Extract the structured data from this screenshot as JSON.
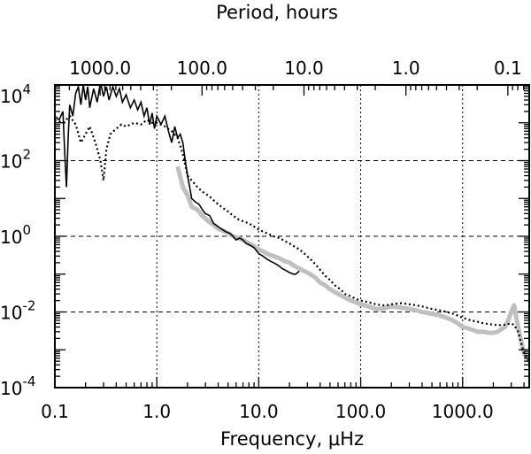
{
  "chart_data": {
    "type": "line",
    "top_axis_title": "Period, hours",
    "bottom_axis_title": "Frequency, μHz",
    "top_tick_labels": [
      "1000.0",
      "100.0",
      "10.0",
      "1.0",
      "0.1"
    ],
    "top_tick_values_hours": [
      1000,
      100,
      10,
      1,
      0.1
    ],
    "bottom_tick_labels": [
      "0.1",
      "1.0",
      "10.0",
      "100.0",
      "1000.0"
    ],
    "bottom_tick_values": [
      0.1,
      1,
      10,
      100,
      1000
    ],
    "y_tick_labels": [
      {
        "base": "10",
        "exp": "4",
        "value": 10000
      },
      {
        "base": "10",
        "exp": "2",
        "value": 100
      },
      {
        "base": "10",
        "exp": "0",
        "value": 1
      },
      {
        "base": "10",
        "exp": "-2",
        "value": 0.01
      },
      {
        "base": "10",
        "exp": "-4",
        "value": 0.0001
      }
    ],
    "x_scale": "log",
    "y_scale": "log",
    "xlim": [
      0.1,
      4500
    ],
    "ylim": [
      0.0001,
      10000
    ],
    "grid": "dotted",
    "series": [
      {
        "style": "solid-gray",
        "color": "#c0c0c0",
        "x": [
          1.6,
          1.8,
          2.0,
          2.2,
          2.5,
          2.8,
          3.2,
          3.6,
          4.0,
          4.5,
          5.0,
          5.6,
          6.3,
          7.0,
          8.0,
          9.0,
          10,
          11,
          12.5,
          14,
          16,
          18,
          20,
          22,
          25,
          28,
          32,
          36,
          40,
          45,
          50,
          56,
          63,
          70,
          80,
          90,
          100,
          120,
          140,
          160,
          180,
          200,
          250,
          300,
          350,
          400,
          500,
          600,
          700,
          800,
          900,
          1000,
          1200,
          1400,
          1600,
          1800,
          2000,
          2200,
          2400,
          2600,
          2800,
          3000,
          3200,
          3400,
          3700,
          4000,
          4300,
          4500
        ],
        "y": [
          70,
          20,
          12,
          6,
          5,
          3.5,
          2.5,
          2.0,
          1.6,
          1.4,
          1.2,
          1.0,
          0.9,
          0.8,
          0.65,
          0.55,
          0.45,
          0.4,
          0.33,
          0.3,
          0.26,
          0.22,
          0.2,
          0.17,
          0.14,
          0.12,
          0.1,
          0.08,
          0.06,
          0.05,
          0.04,
          0.033,
          0.028,
          0.024,
          0.02,
          0.018,
          0.016,
          0.014,
          0.012,
          0.012,
          0.013,
          0.014,
          0.013,
          0.012,
          0.011,
          0.01,
          0.009,
          0.008,
          0.007,
          0.006,
          0.005,
          0.004,
          0.0035,
          0.003,
          0.003,
          0.0028,
          0.0028,
          0.003,
          0.0035,
          0.004,
          0.006,
          0.01,
          0.015,
          0.006,
          0.002,
          0.0008,
          0.0006,
          0.0005
        ]
      },
      {
        "style": "solid-black",
        "color": "#000000",
        "x": [
          0.1,
          0.11,
          0.12,
          0.125,
          0.13,
          0.135,
          0.14,
          0.15,
          0.16,
          0.17,
          0.18,
          0.19,
          0.2,
          0.21,
          0.22,
          0.24,
          0.26,
          0.28,
          0.3,
          0.32,
          0.34,
          0.37,
          0.4,
          0.43,
          0.46,
          0.5,
          0.55,
          0.6,
          0.65,
          0.7,
          0.75,
          0.8,
          0.85,
          0.9,
          0.95,
          1.0,
          1.1,
          1.2,
          1.3,
          1.4,
          1.5,
          1.6,
          1.7,
          1.8,
          1.9,
          2.0,
          2.1,
          2.2,
          2.4,
          2.6,
          2.8,
          3.0,
          3.3,
          3.6,
          4.0,
          4.4,
          4.8,
          5.2,
          5.6,
          6.0,
          6.5,
          7.0,
          7.5,
          8.0,
          8.5,
          9.0,
          10,
          11,
          12,
          13,
          14,
          15,
          16,
          17,
          18,
          19,
          20,
          22,
          23,
          24,
          25
        ],
        "y": [
          1500,
          1200,
          2000,
          150,
          20,
          400,
          3000,
          1500,
          6000,
          9000,
          3000,
          10000,
          4000,
          9000,
          2500,
          8000,
          3500,
          12000,
          5000,
          9000,
          4000,
          9000,
          5000,
          8000,
          3500,
          5500,
          2500,
          4000,
          2200,
          3500,
          1500,
          2500,
          900,
          1800,
          700,
          1500,
          900,
          1500,
          600,
          300,
          800,
          400,
          500,
          300,
          100,
          40,
          20,
          10,
          8,
          7,
          5,
          4,
          3.5,
          2.2,
          1.8,
          1.5,
          1.3,
          1.2,
          1.0,
          0.8,
          0.9,
          0.8,
          0.65,
          0.6,
          0.55,
          0.5,
          0.35,
          0.3,
          0.25,
          0.22,
          0.2,
          0.18,
          0.16,
          0.14,
          0.13,
          0.12,
          0.11,
          0.1,
          0.1,
          0.11,
          0.12
        ]
      },
      {
        "style": "dotted-black",
        "color": "#000000",
        "x": [
          0.1,
          0.12,
          0.14,
          0.16,
          0.18,
          0.2,
          0.22,
          0.25,
          0.28,
          0.3,
          0.32,
          0.35,
          0.4,
          0.45,
          0.5,
          0.6,
          0.7,
          0.8,
          0.9,
          1.0,
          1.2,
          1.4,
          1.6,
          1.8,
          2.0,
          2.2,
          2.5,
          2.8,
          3.2,
          3.6,
          4.0,
          4.5,
          5.0,
          5.6,
          6.3,
          7.0,
          8.0,
          9.0,
          10,
          12,
          14,
          16,
          18,
          20,
          22,
          25,
          28,
          32,
          36,
          40,
          45,
          50,
          56,
          63,
          70,
          80,
          90,
          100,
          120,
          140,
          160,
          180,
          200,
          250,
          300,
          350,
          400,
          500,
          600,
          700,
          800,
          900,
          1000,
          1200,
          1400,
          1600,
          1800,
          2000,
          2200,
          2400,
          2600,
          2800,
          3000,
          3200,
          3500,
          4000,
          4500
        ],
        "y": [
          1200,
          1000,
          1500,
          900,
          300,
          500,
          800,
          300,
          100,
          30,
          200,
          500,
          700,
          900,
          800,
          1000,
          900,
          1200,
          1000,
          1000,
          800,
          600,
          400,
          150,
          40,
          30,
          20,
          15,
          12,
          9,
          7,
          5.5,
          4.5,
          3.5,
          2.8,
          2.5,
          2.2,
          1.8,
          1.5,
          1.2,
          1.0,
          0.9,
          0.75,
          0.65,
          0.55,
          0.45,
          0.35,
          0.25,
          0.18,
          0.13,
          0.09,
          0.07,
          0.05,
          0.04,
          0.03,
          0.026,
          0.022,
          0.02,
          0.018,
          0.016,
          0.015,
          0.015,
          0.016,
          0.017,
          0.016,
          0.015,
          0.014,
          0.012,
          0.011,
          0.01,
          0.009,
          0.008,
          0.007,
          0.006,
          0.0055,
          0.005,
          0.0048,
          0.0046,
          0.0045,
          0.0045,
          0.0046,
          0.0048,
          0.005,
          0.0045,
          0.003,
          0.0008,
          0.0005
        ]
      }
    ]
  }
}
